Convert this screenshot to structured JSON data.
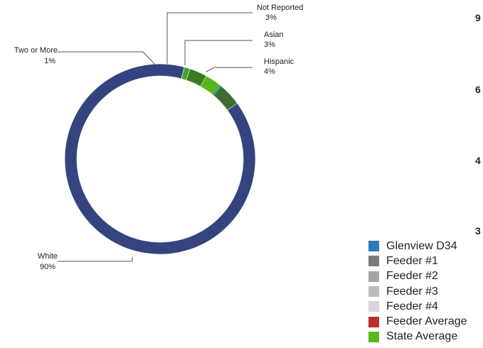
{
  "chart_data": {
    "type": "pie",
    "variant": "donut",
    "slices": [
      {
        "label": "White",
        "value_label": "90%",
        "value": 90,
        "color": "#35447f"
      },
      {
        "label": "Two or More",
        "value_label": "1%",
        "value": 1,
        "color": "#48a22a"
      },
      {
        "label": "Not Reported",
        "value_label": "3%",
        "value": 3,
        "color": "#3c7a24"
      },
      {
        "label": "Asian",
        "value_label": "3%",
        "value": 3,
        "color": "#58b51c"
      },
      {
        "label": "Hispanic",
        "value_label": "4%",
        "value": 4,
        "color": "#3c6e2e"
      }
    ],
    "clipped_axis_ticks": [
      "9",
      "6",
      "4",
      "3"
    ],
    "legend": {
      "placement": "bottom-right",
      "items": [
        {
          "label": "Glenview D34",
          "color": "#2b7bb9"
        },
        {
          "label": "Feeder #1",
          "color": "#7a7a7a"
        },
        {
          "label": "Feeder #2",
          "color": "#a4a4a4"
        },
        {
          "label": "Feeder #3",
          "color": "#bdbdbd"
        },
        {
          "label": "Feeder #4",
          "color": "#d6d6d6"
        },
        {
          "label": "Feeder Average",
          "color": "#b8312a"
        },
        {
          "label": "State Average",
          "color": "#5db51f"
        }
      ]
    }
  }
}
